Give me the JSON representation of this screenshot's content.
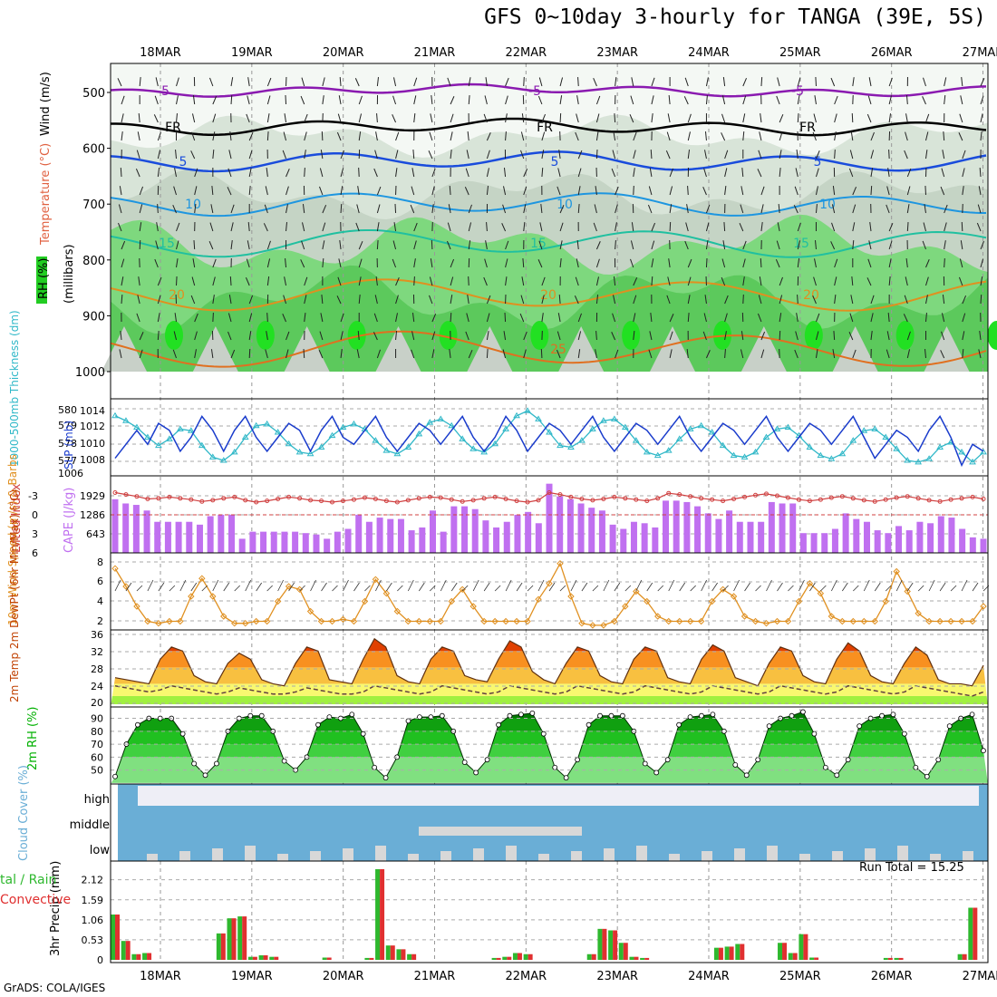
{
  "title": "GFS 0~10day 3-hourly for TANGA (39E, 5S)",
  "credit": "GrADS: COLA/IGES",
  "run_total": "Run Total = 15.25",
  "dates": [
    "18MAR",
    "19MAR",
    "20MAR",
    "21MAR",
    "22MAR",
    "23MAR",
    "24MAR",
    "25MAR",
    "26MAR",
    "27MAR"
  ],
  "colors": {
    "rh_green": "#6ccf6c",
    "rh_light": "#e6f2e6",
    "cape": "#c070f0",
    "lifted": "#d04040",
    "slp": "#1a3ccc",
    "thick": "#30b8c8",
    "wind": "#e09020",
    "temp_top": "#e04000",
    "cloud": "#6aaed6",
    "precip_total": "#2eb82e",
    "precip_conv": "#e03030",
    "rh2m": "#00b000"
  },
  "chart_data": [
    {
      "type": "heatmap",
      "name_panel": "upper-air",
      "ylabel_parts": [
        "RH (%)",
        "Temperature (°C)",
        "Wind (m/s)"
      ],
      "ylabel_units": "(millibars)",
      "y_ticks": [
        500,
        600,
        700,
        800,
        900,
        1000
      ],
      "isotherm_labels": [
        "-5",
        "FR",
        "5",
        "10",
        "15",
        "20",
        "25"
      ],
      "rh_labels": [
        "30",
        "50",
        "70"
      ]
    },
    {
      "type": "line",
      "name_panel": "slp-thickness",
      "ylabel_left": "1000-500mb Thickness (dm)",
      "ylabel_right": "SLP (mb)",
      "y_ticks_left": [
        "580",
        "579",
        "578",
        "577",
        "1006"
      ],
      "y_ticks_right": [
        "1014",
        "1012",
        "1010",
        "1008"
      ],
      "ylim_slp": [
        1006,
        1016
      ],
      "ylim_thick": [
        576.5,
        580.5
      ],
      "series": [
        {
          "name": "SLP",
          "values": [
            1008,
            1010,
            1012,
            1010,
            1013,
            1012,
            1009,
            1011,
            1014,
            1012,
            1009,
            1012,
            1014,
            1011,
            1009,
            1011,
            1013,
            1012,
            1009,
            1012,
            1014,
            1011,
            1010,
            1012,
            1014,
            1011,
            1009,
            1011,
            1013,
            1012,
            1010,
            1012,
            1014,
            1011,
            1009,
            1011,
            1014,
            1012,
            1009,
            1011,
            1013,
            1012,
            1010,
            1012,
            1014,
            1011,
            1009,
            1011,
            1013,
            1012,
            1010,
            1012,
            1014,
            1011,
            1009,
            1011,
            1013,
            1012,
            1010,
            1012,
            1014,
            1011,
            1009,
            1011,
            1013,
            1012,
            1010,
            1012,
            1014,
            1011,
            1008,
            1010,
            1012,
            1011,
            1009,
            1012,
            1014,
            1011,
            1007,
            1010,
            1009
          ]
        },
        {
          "name": "Thickness",
          "values": [
            579.8,
            579.5,
            579.1,
            578.5,
            578.0,
            578.4,
            579.0,
            578.9,
            578.0,
            577.3,
            577.1,
            577.6,
            578.5,
            579.2,
            579.3,
            578.8,
            578.1,
            577.6,
            577.5,
            577.9,
            578.6,
            579.1,
            579.3,
            579.0,
            578.3,
            577.7,
            577.5,
            577.9,
            578.7,
            579.4,
            579.6,
            579.2,
            578.4,
            577.8,
            577.6,
            578.1,
            579.0,
            579.8,
            580.1,
            579.6,
            578.8,
            578.0,
            577.9,
            578.3,
            579.0,
            579.5,
            579.6,
            579.1,
            578.3,
            577.6,
            577.4,
            577.7,
            578.4,
            579.0,
            579.2,
            578.8,
            578.0,
            577.4,
            577.3,
            577.6,
            578.5,
            579.0,
            579.1,
            578.6,
            577.9,
            577.4,
            577.2,
            577.5,
            578.3,
            578.9,
            579.0,
            578.5,
            577.8,
            577.1,
            577.0,
            577.2,
            577.9,
            578.2,
            577.6,
            577.0,
            577.6
          ]
        }
      ]
    },
    {
      "type": "bar",
      "name_panel": "cape-lifted",
      "ylabel_left": "Lifted Index",
      "ylabel_right": "CAPE (J/kg)",
      "y_ticks_left": [
        "-3",
        "0",
        "3",
        "6"
      ],
      "y_ticks_right": [
        "1929",
        "1286",
        "643"
      ],
      "ylim_cape": [
        0,
        2600
      ],
      "cape": [
        1900,
        1750,
        1700,
        1500,
        1100,
        1100,
        1100,
        1100,
        1000,
        1300,
        1350,
        1350,
        500,
        750,
        750,
        750,
        750,
        750,
        700,
        650,
        500,
        750,
        850,
        1350,
        1100,
        1250,
        1200,
        1200,
        800,
        900,
        1500,
        750,
        1650,
        1650,
        1550,
        1150,
        900,
        1100,
        1350,
        1450,
        1050,
        2450,
        2000,
        1900,
        1750,
        1600,
        1500,
        1000,
        850,
        1100,
        1050,
        900,
        1850,
        1850,
        1800,
        1650,
        1400,
        1200,
        1500,
        1100,
        1100,
        1100,
        1800,
        1750,
        1750,
        700,
        700,
        700,
        850,
        1400,
        1200,
        1100,
        800,
        700,
        950,
        800,
        1100,
        1050,
        1300,
        1250,
        850,
        550,
        500
      ],
      "lifted": [
        -3.5,
        -3.2,
        -2.9,
        -2.5,
        -2.6,
        -2.8,
        -2.6,
        -2.4,
        -2.1,
        -2.3,
        -2.6,
        -2.8,
        -2.3,
        -2.0,
        -2.2,
        -2.5,
        -2.8,
        -2.6,
        -2.3,
        -2.2,
        -2.0,
        -2.2,
        -2.4,
        -2.7,
        -2.5,
        -2.2,
        -2.0,
        -2.3,
        -2.6,
        -2.8,
        -2.7,
        -2.4,
        -2.1,
        -2.3,
        -2.6,
        -2.8,
        -2.5,
        -2.2,
        -2.0,
        -2.3,
        -3.5,
        -3.2,
        -2.8,
        -2.5,
        -2.3,
        -2.5,
        -2.8,
        -2.6,
        -2.4,
        -2.2,
        -2.6,
        -3.4,
        -3.2,
        -2.9,
        -2.6,
        -2.4,
        -2.2,
        -2.5,
        -2.8,
        -3.1,
        -3.3,
        -3.0,
        -2.7,
        -2.4,
        -2.2,
        -2.4,
        -2.7,
        -2.9,
        -2.6,
        -2.3,
        -2.1,
        -2.4,
        -2.7,
        -2.9,
        -2.6,
        -2.3,
        -2.1,
        -2.4,
        -2.6,
        -2.8,
        -2.5
      ]
    },
    {
      "type": "line",
      "name_panel": "wind10m",
      "ylabel": "10m Wind Speed (m/s) & Barbs",
      "y_ticks": [
        "8",
        "6",
        "4",
        "2"
      ],
      "ylim": [
        1.5,
        8.5
      ],
      "values": [
        7.3,
        5.5,
        3.5,
        2.0,
        1.8,
        2.0,
        2.0,
        4.5,
        6.3,
        4.5,
        2.5,
        1.8,
        1.8,
        2.0,
        2.0,
        4.0,
        5.5,
        5.2,
        3.0,
        2.0,
        2.0,
        2.2,
        2.0,
        4.0,
        6.2,
        4.8,
        3.0,
        2.0,
        2.0,
        2.0,
        2.0,
        4.0,
        5.2,
        3.5,
        2.0,
        2.0,
        2.0,
        2.0,
        2.0,
        4.2,
        5.8,
        7.8,
        4.5,
        1.8,
        1.6,
        1.6,
        2.0,
        3.5,
        5.0,
        4.0,
        2.5,
        2.0,
        2.0,
        2.0,
        2.0,
        4.0,
        5.2,
        4.5,
        2.5,
        2.0,
        1.8,
        2.0,
        2.0,
        4.0,
        5.8,
        4.8,
        2.5,
        2.0,
        2.0,
        2.0,
        2.0,
        4.0,
        7.0,
        5.0,
        2.8,
        2.0,
        2.0,
        2.0,
        2.0,
        2.0,
        3.5
      ]
    },
    {
      "type": "area",
      "name_panel": "temp2m",
      "ylabel": "2m Temp 2m DewPt (6hr Min/Max) (°C)",
      "y_ticks": [
        "36",
        "32",
        "28",
        "24",
        "20"
      ],
      "ylim": [
        19,
        36.5
      ],
      "temp": [
        25.5,
        25,
        24.5,
        24,
        30,
        33,
        32,
        26,
        24.5,
        24,
        29,
        31.5,
        30,
        25,
        24,
        23.5,
        29,
        33,
        32,
        25,
        24.5,
        24,
        30,
        35,
        33,
        26,
        24.5,
        24,
        30,
        33,
        32,
        26,
        25,
        24.5,
        30,
        34.5,
        33,
        27,
        25,
        24,
        29,
        33,
        32,
        26,
        24.5,
        24,
        30,
        33,
        32,
        25.5,
        24.5,
        24,
        30,
        33.5,
        32,
        25.5,
        24.5,
        23.5,
        29,
        33,
        32,
        26,
        24.5,
        24,
        30,
        34,
        32,
        26,
        24.5,
        24,
        29,
        33,
        31,
        25,
        24,
        24,
        23.5,
        28.5
      ],
      "dewpoint": [
        23.5,
        23,
        22.5,
        22,
        22.5,
        23.5,
        23,
        22.5,
        22,
        21.5,
        22,
        23,
        22.5,
        22,
        21.5,
        21.5,
        22,
        23,
        22.5,
        22,
        21.5,
        21.5,
        22,
        23.5,
        23,
        22.5,
        22,
        21.5,
        22,
        23.5,
        23,
        22.5,
        22,
        21.5,
        22,
        23.5,
        23,
        22.5,
        22,
        21.5,
        22,
        23.5,
        23,
        22.5,
        22,
        21.5,
        22,
        23.5,
        23,
        22.5,
        22,
        21.5,
        22,
        23.5,
        23,
        22.5,
        22,
        21.5,
        22,
        23.5,
        23,
        22.5,
        22,
        21.5,
        22,
        23.5,
        23,
        22.5,
        22,
        21.5,
        22,
        23.5,
        23,
        22.5,
        22,
        21.5,
        21,
        22
      ]
    },
    {
      "type": "area",
      "name_panel": "rh2m",
      "ylabel": "2m RH (%)",
      "y_ticks": [
        "90",
        "80",
        "70",
        "60",
        "50"
      ],
      "ylim": [
        42,
        96
      ],
      "values": [
        45,
        70,
        85,
        90,
        90,
        90,
        78,
        55,
        46,
        55,
        80,
        90,
        92,
        92,
        80,
        57,
        50,
        60,
        85,
        91,
        90,
        93,
        78,
        52,
        44,
        60,
        88,
        91,
        91,
        92,
        80,
        56,
        48,
        58,
        85,
        92,
        93,
        94,
        78,
        52,
        44,
        58,
        85,
        92,
        92,
        92,
        80,
        55,
        48,
        58,
        85,
        91,
        92,
        93,
        80,
        54,
        46,
        58,
        84,
        90,
        92,
        95,
        78,
        52,
        46,
        58,
        84,
        90,
        92,
        93,
        78,
        52,
        45,
        58,
        84,
        90,
        93,
        65
      ]
    },
    {
      "type": "area",
      "name_panel": "cloud",
      "ylabel": "Cloud Cover (%)",
      "y_ticks": [
        "high",
        "middle",
        "low"
      ]
    },
    {
      "type": "bar",
      "name_panel": "precip",
      "ylabel_left": "Total / Rain Convective",
      "ylabel": "3hr Precip (mm)",
      "y_ticks": [
        "2.12",
        "1.59",
        "1.06",
        "0.53",
        "0"
      ],
      "ylim": [
        0,
        2.4
      ],
      "values": [
        1.2,
        0.5,
        0.15,
        0.18,
        0,
        0,
        0,
        0,
        0,
        0,
        0.7,
        1.1,
        1.15,
        0.08,
        0.12,
        0.08,
        0,
        0,
        0,
        0,
        0.06,
        0,
        0,
        0,
        0.05,
        2.4,
        0.38,
        0.28,
        0.15,
        0,
        0,
        0,
        0,
        0,
        0,
        0,
        0.05,
        0.08,
        0.18,
        0.15,
        0,
        0,
        0,
        0,
        0,
        0.15,
        0.82,
        0.78,
        0.45,
        0.08,
        0.05,
        0,
        0,
        0,
        0,
        0,
        0,
        0.32,
        0.35,
        0.42,
        0,
        0,
        0,
        0.45,
        0.18,
        0.68,
        0.06,
        0,
        0,
        0,
        0,
        0,
        0,
        0.05,
        0.05,
        0,
        0,
        0,
        0,
        0,
        0.15,
        1.38,
        0
      ]
    }
  ]
}
